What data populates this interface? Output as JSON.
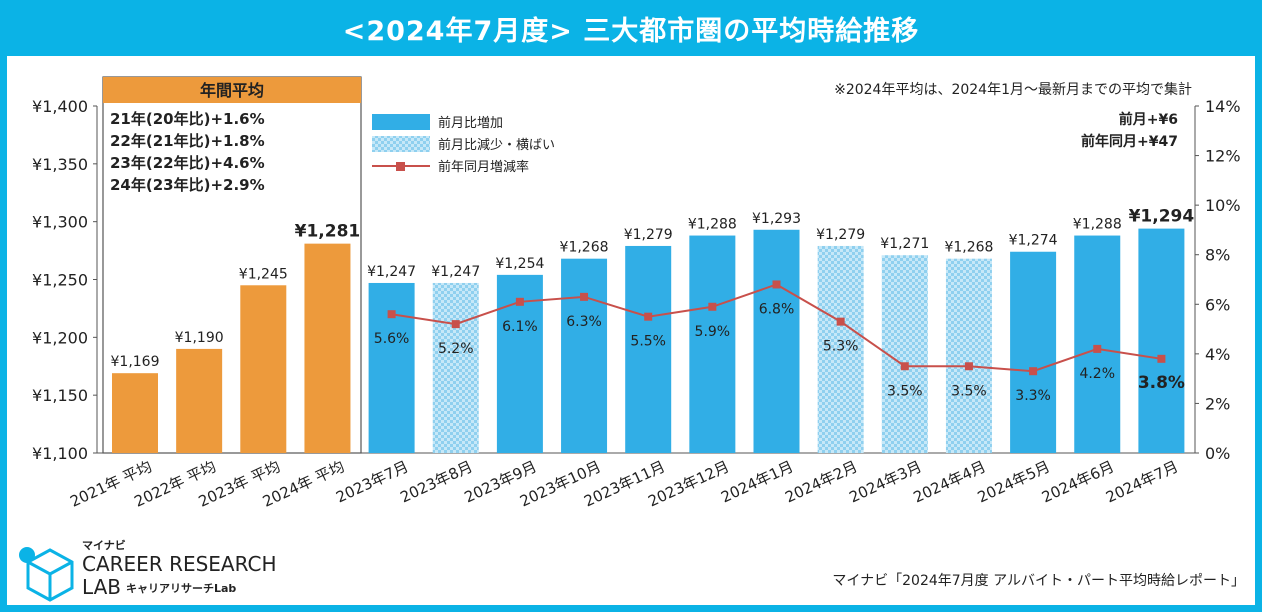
{
  "title": "<2024年7月度> 三大都市圏の平均時給推移",
  "annual_header": "年間平均",
  "annual_notes": [
    "21年(20年比)+1.6%",
    "22年(21年比)+1.8%",
    "23年(22年比)+4.6%",
    "24年(23年比)+2.9%"
  ],
  "note_top": "※2024年平均は、2024年1月～最新月までの平均で集計",
  "legend": [
    "前月比増加",
    "前月比減少・横ばい",
    "前年同月増減率"
  ],
  "summary": [
    "前月+¥6",
    "前年同月+¥47"
  ],
  "logo": {
    "top": "マイナビ",
    "line1": "CAREER RESEARCH",
    "line2": "LAB",
    "sub": "キャリアリサーチLab"
  },
  "source": "マイナビ「2024年7月度 アルバイト・パート平均時給レポート」",
  "colors": {
    "banner": "#0bb3e6",
    "annual": "#ed9a3c",
    "increase": "#31aee6",
    "decrease": "#a9dcf4",
    "line": "#c8504b"
  },
  "chart_data": {
    "type": "bar",
    "title": "<2024年7月度> 三大都市圏の平均時給推移",
    "categories": [
      "2021年 平均",
      "2022年 平均",
      "2023年 平均",
      "2024年 平均",
      "2023年7月",
      "2023年8月",
      "2023年9月",
      "2023年10月",
      "2023年11月",
      "2023年12月",
      "2024年1月",
      "2024年2月",
      "2024年3月",
      "2024年4月",
      "2024年5月",
      "2024年6月",
      "2024年7月"
    ],
    "bar_kind": [
      "annual",
      "annual",
      "annual",
      "annual",
      "increase",
      "decrease",
      "increase",
      "increase",
      "increase",
      "increase",
      "increase",
      "decrease",
      "decrease",
      "decrease",
      "increase",
      "increase",
      "increase"
    ],
    "series": [
      {
        "name": "平均時給",
        "axis": "left",
        "values": [
          1169,
          1190,
          1245,
          1281,
          1247,
          1247,
          1254,
          1268,
          1279,
          1288,
          1293,
          1279,
          1271,
          1268,
          1274,
          1288,
          1294
        ],
        "labels": [
          "¥1,169",
          "¥1,190",
          "¥1,245",
          "¥1,281",
          "¥1,247",
          "¥1,247",
          "¥1,254",
          "¥1,268",
          "¥1,279",
          "¥1,288",
          "¥1,293",
          "¥1,279",
          "¥1,271",
          "¥1,268",
          "¥1,274",
          "¥1,288",
          "¥1,294"
        ]
      },
      {
        "name": "前年同月増減率",
        "axis": "right",
        "type": "line",
        "values": [
          null,
          null,
          null,
          null,
          5.6,
          5.2,
          6.1,
          6.3,
          5.5,
          5.9,
          6.8,
          5.3,
          3.5,
          3.5,
          3.3,
          4.2,
          3.8
        ],
        "labels": [
          "",
          "",
          "",
          "",
          "5.6%",
          "5.2%",
          "6.1%",
          "6.3%",
          "5.5%",
          "5.9%",
          "6.8%",
          "5.3%",
          "3.5%",
          "3.5%",
          "3.3%",
          "4.2%",
          "3.8%"
        ]
      }
    ],
    "ylim": [
      1100,
      1400
    ],
    "y_ticks": [
      "¥1,100",
      "¥1,150",
      "¥1,200",
      "¥1,250",
      "¥1,300",
      "¥1,350",
      "¥1,400"
    ],
    "y2lim": [
      0,
      14
    ],
    "y2_ticks": [
      "0%",
      "2%",
      "4%",
      "6%",
      "8%",
      "10%",
      "12%",
      "14%"
    ],
    "grid": false,
    "legend_position": "top-left"
  }
}
